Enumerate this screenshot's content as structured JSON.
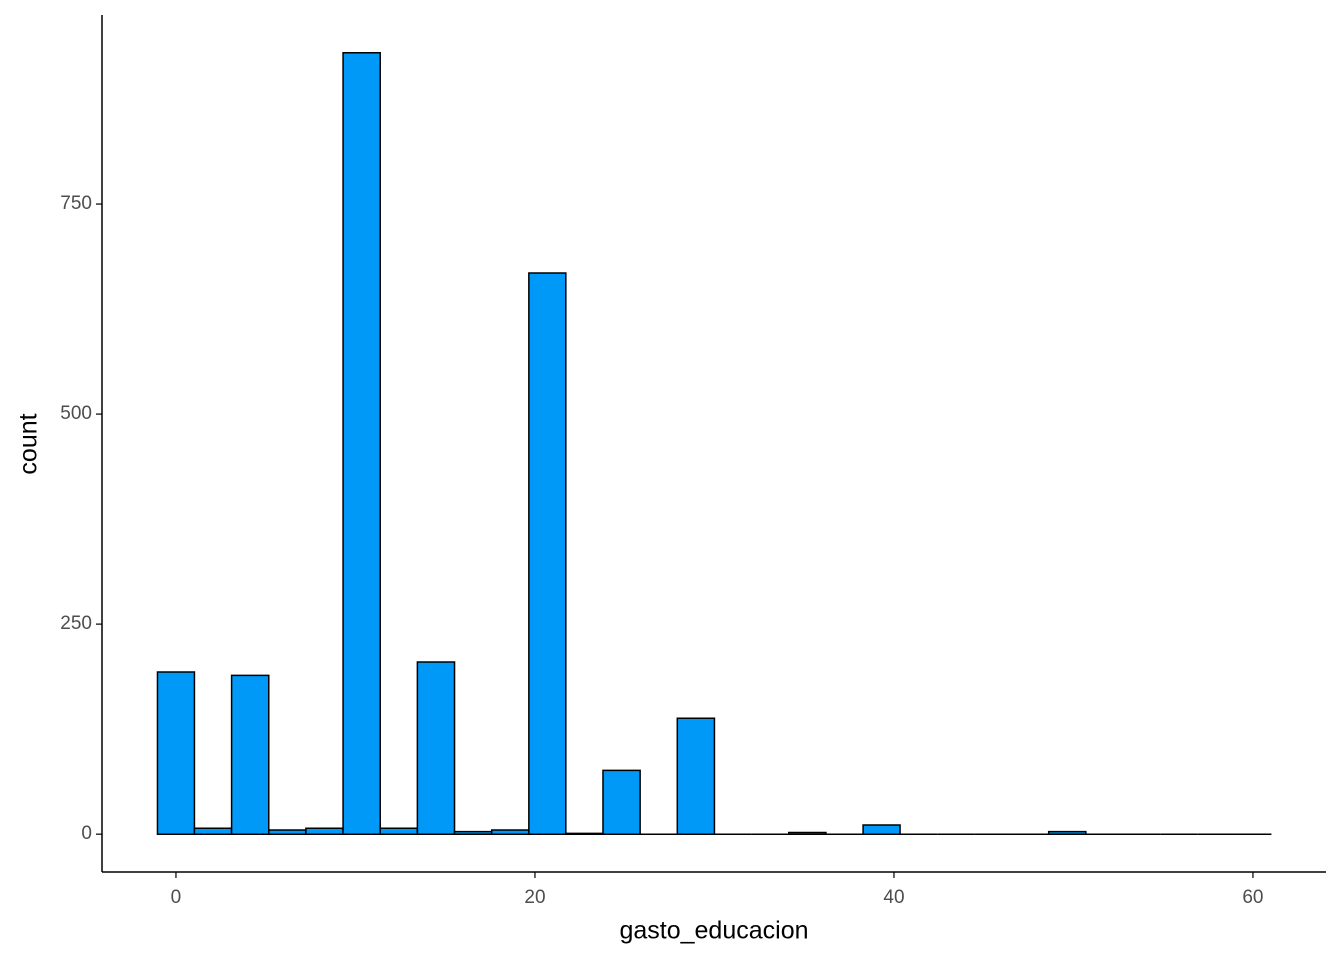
{
  "chart_data": {
    "type": "histogram",
    "x_label": "gasto_educacion",
    "y_label": "count",
    "bins": [
      -1.03,
      1.03,
      3.1,
      5.17,
      7.24,
      9.31,
      11.38,
      13.45,
      15.52,
      17.59,
      19.66,
      21.72,
      23.79,
      25.86,
      27.93,
      30.0,
      32.07,
      34.14,
      36.21,
      38.28,
      40.34,
      42.41,
      44.48,
      46.55,
      48.62,
      50.69,
      52.76,
      54.83,
      56.9,
      58.97,
      61.03
    ],
    "values": [
      193,
      7,
      189,
      5,
      7,
      930,
      7,
      205,
      3,
      5,
      668,
      1,
      76,
      0,
      138,
      0,
      0,
      2,
      0,
      11,
      0,
      0,
      0,
      0,
      3,
      0,
      0,
      0,
      0,
      0
    ],
    "color": "#0099f7",
    "edge_color": "#000000",
    "xlim": [
      -4.12,
      64.07
    ],
    "ylim": [
      -45,
      975
    ],
    "xticks": [
      0,
      20,
      40,
      60
    ],
    "yticks": [
      0,
      250,
      500,
      750
    ],
    "grid": false
  }
}
